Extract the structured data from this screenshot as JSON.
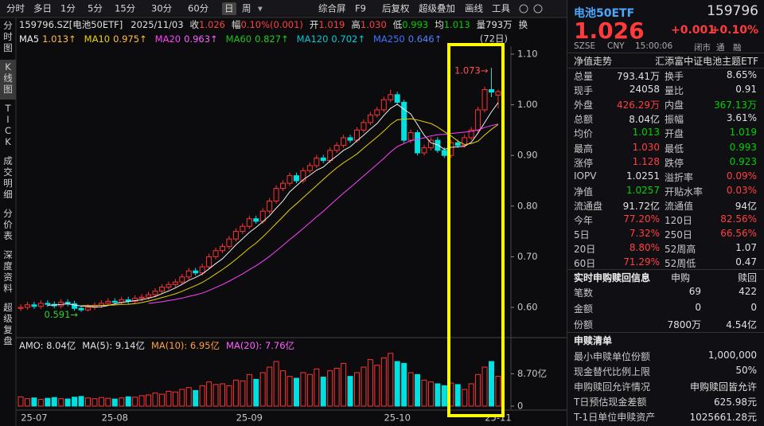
{
  "toolbar": {
    "periods": [
      "分时",
      "多日",
      "1分",
      "5分",
      "15分",
      "30分",
      "60分",
      "日",
      "周"
    ],
    "selected": "日",
    "tools": [
      "综合屏",
      "F9",
      "后复权",
      "超级叠加",
      "画线",
      "工具"
    ]
  },
  "side_tabs": [
    "分时图",
    "K线图",
    "TICK",
    "成交明细",
    "分价表",
    "深度资料",
    "超级复盘"
  ],
  "side_selected": "K线图",
  "quote_line": {
    "code": "159796.SZ[电池50ETF]",
    "date": "2025/11/03",
    "items": [
      {
        "label": "收",
        "value": "1.026",
        "color": "#ff4040"
      },
      {
        "label": "幅",
        "value": "0.10%(0.001)",
        "color": "#ff4040"
      },
      {
        "label": "开",
        "value": "1.019",
        "color": "#ff4040"
      },
      {
        "label": "高",
        "value": "1.030",
        "color": "#ff4040"
      },
      {
        "label": "低",
        "value": "0.993",
        "color": "#00d000"
      },
      {
        "label": "均",
        "value": "1.013",
        "color": "#00d000"
      },
      {
        "label": "量",
        "value": "793万",
        "color": "#e0e0e0"
      },
      {
        "label": "换",
        "value": "",
        "color": "#e0e0e0"
      }
    ]
  },
  "ma_legend": [
    {
      "label": "MA5",
      "value": "1.013↑",
      "color": "#f0f0f0",
      "vcolor": "#ffc040"
    },
    {
      "label": "MA10",
      "value": "0.975↑",
      "color": "#e8d000",
      "vcolor": "#ffc040"
    },
    {
      "label": "MA20",
      "value": "0.963↑",
      "color": "#ff40ff",
      "vcolor": "#ff60ff"
    },
    {
      "label": "MA60",
      "value": "0.827↑",
      "color": "#20c020",
      "vcolor": "#20d020"
    },
    {
      "label": "MA120",
      "value": "0.702↑",
      "color": "#00c8d0",
      "vcolor": "#00d0e0"
    },
    {
      "label": "MA250",
      "value": "0.646↑",
      "color": "#4070ff",
      "vcolor": "#5080ff"
    }
  ],
  "kline": {
    "period_label": "(72日)",
    "ylim": [
      0.6,
      1.1
    ],
    "yticks": [
      {
        "value": 1.1,
        "label": "1.10"
      },
      {
        "value": 1.0,
        "label": "1.00"
      },
      {
        "value": 0.9,
        "label": "0.90"
      },
      {
        "value": 0.8,
        "label": "0.80"
      },
      {
        "value": 0.7,
        "label": "0.70"
      },
      {
        "value": 0.6,
        "label": "0.60"
      }
    ],
    "high_note": "1.073→",
    "low_note": "0.591→",
    "up_color": "#ff3232",
    "down_color": "#00e0e0",
    "candles": [
      [
        0.598,
        0.606,
        0.593,
        0.6
      ],
      [
        0.6,
        0.611,
        0.595,
        0.605
      ],
      [
        0.605,
        0.611,
        0.597,
        0.602
      ],
      [
        0.602,
        0.614,
        0.597,
        0.608
      ],
      [
        0.608,
        0.614,
        0.601,
        0.606
      ],
      [
        0.606,
        0.612,
        0.598,
        0.603
      ],
      [
        0.603,
        0.616,
        0.598,
        0.61
      ],
      [
        0.61,
        0.616,
        0.602,
        0.607
      ],
      [
        0.607,
        0.613,
        0.593,
        0.598
      ],
      [
        0.598,
        0.604,
        0.591,
        0.595
      ],
      [
        0.595,
        0.606,
        0.592,
        0.6
      ],
      [
        0.6,
        0.61,
        0.595,
        0.604
      ],
      [
        0.604,
        0.614,
        0.599,
        0.608
      ],
      [
        0.608,
        0.618,
        0.603,
        0.612
      ],
      [
        0.612,
        0.618,
        0.605,
        0.61
      ],
      [
        0.61,
        0.621,
        0.605,
        0.615
      ],
      [
        0.615,
        0.621,
        0.607,
        0.612
      ],
      [
        0.612,
        0.624,
        0.607,
        0.618
      ],
      [
        0.618,
        0.626,
        0.613,
        0.62
      ],
      [
        0.62,
        0.631,
        0.615,
        0.625
      ],
      [
        0.625,
        0.638,
        0.62,
        0.632
      ],
      [
        0.632,
        0.646,
        0.627,
        0.64
      ],
      [
        0.64,
        0.651,
        0.635,
        0.645
      ],
      [
        0.645,
        0.656,
        0.64,
        0.65
      ],
      [
        0.65,
        0.666,
        0.645,
        0.66
      ],
      [
        0.66,
        0.678,
        0.655,
        0.672
      ],
      [
        0.672,
        0.678,
        0.663,
        0.668
      ],
      [
        0.668,
        0.686,
        0.663,
        0.68
      ],
      [
        0.68,
        0.706,
        0.675,
        0.7
      ],
      [
        0.7,
        0.718,
        0.695,
        0.712
      ],
      [
        0.712,
        0.726,
        0.707,
        0.72
      ],
      [
        0.72,
        0.741,
        0.715,
        0.735
      ],
      [
        0.735,
        0.756,
        0.73,
        0.75
      ],
      [
        0.75,
        0.766,
        0.745,
        0.76
      ],
      [
        0.76,
        0.781,
        0.755,
        0.775
      ],
      [
        0.775,
        0.781,
        0.765,
        0.77
      ],
      [
        0.77,
        0.796,
        0.765,
        0.79
      ],
      [
        0.79,
        0.816,
        0.785,
        0.81
      ],
      [
        0.81,
        0.841,
        0.805,
        0.835
      ],
      [
        0.835,
        0.851,
        0.83,
        0.845
      ],
      [
        0.845,
        0.866,
        0.84,
        0.86
      ],
      [
        0.86,
        0.866,
        0.845,
        0.85
      ],
      [
        0.85,
        0.876,
        0.845,
        0.87
      ],
      [
        0.87,
        0.886,
        0.865,
        0.88
      ],
      [
        0.88,
        0.901,
        0.875,
        0.895
      ],
      [
        0.895,
        0.901,
        0.885,
        0.89
      ],
      [
        0.89,
        0.916,
        0.885,
        0.91
      ],
      [
        0.91,
        0.926,
        0.905,
        0.92
      ],
      [
        0.92,
        0.941,
        0.915,
        0.935
      ],
      [
        0.935,
        0.941,
        0.925,
        0.93
      ],
      [
        0.93,
        0.956,
        0.925,
        0.95
      ],
      [
        0.95,
        0.971,
        0.945,
        0.965
      ],
      [
        0.965,
        0.986,
        0.96,
        0.98
      ],
      [
        0.98,
        0.996,
        0.975,
        0.99
      ],
      [
        0.99,
        1.016,
        0.985,
        1.01
      ],
      [
        1.01,
        1.03,
        1.005,
        1.02
      ],
      [
        1.02,
        1.026,
        1.0,
        1.005
      ],
      [
        1.005,
        1.01,
        0.925,
        0.93
      ],
      [
        0.93,
        0.951,
        0.925,
        0.945
      ],
      [
        0.945,
        0.95,
        0.9,
        0.905
      ],
      [
        0.905,
        0.921,
        0.9,
        0.915
      ],
      [
        0.915,
        0.936,
        0.91,
        0.93
      ],
      [
        0.93,
        0.936,
        0.905,
        0.91
      ],
      [
        0.91,
        0.916,
        0.895,
        0.9
      ],
      [
        0.9,
        0.931,
        0.895,
        0.925
      ],
      [
        0.925,
        0.931,
        0.915,
        0.92
      ],
      [
        0.92,
        0.941,
        0.915,
        0.935
      ],
      [
        0.935,
        0.956,
        0.93,
        0.95
      ],
      [
        0.95,
        0.996,
        0.945,
        0.99
      ],
      [
        0.99,
        1.036,
        0.985,
        1.03
      ],
      [
        1.03,
        1.073,
        1.015,
        1.025
      ],
      [
        1.019,
        1.03,
        0.993,
        1.026
      ]
    ],
    "dates": [
      null,
      null,
      "25-07",
      null,
      null,
      null,
      null,
      null,
      null,
      null,
      null,
      null,
      null,
      null,
      "25-08",
      null,
      null,
      null,
      null,
      null,
      null,
      null,
      null,
      null,
      null,
      null,
      null,
      null,
      null,
      null,
      null,
      null,
      null,
      null,
      "25-09",
      null,
      null,
      null,
      null,
      null,
      null,
      null,
      null,
      null,
      null,
      null,
      null,
      null,
      null,
      null,
      null,
      null,
      null,
      null,
      null,
      null,
      "25-10",
      null,
      null,
      null,
      null,
      null,
      null,
      null,
      null,
      null,
      null,
      null,
      null,
      null,
      null,
      "25-11"
    ],
    "volume_legend": [
      {
        "text": "AMO: 8.04亿",
        "color": "#e0e0e0"
      },
      {
        "text": "MA(5): 9.14亿",
        "color": "#e0e0e0"
      },
      {
        "text": "MA(10): 6.95亿",
        "color": "#ffa040"
      },
      {
        "text": "MA(20): 7.76亿",
        "color": "#ff60ff"
      }
    ],
    "vol_ylim": [
      0,
      15
    ],
    "vol_ticks": [
      {
        "value": 8.7,
        "label": "8.70亿"
      },
      0
    ],
    "volumes": [
      2.5,
      2.0,
      2.2,
      1.8,
      2.1,
      2.3,
      2.0,
      1.9,
      2.4,
      2.6,
      2.2,
      2.0,
      2.3,
      2.1,
      1.9,
      2.2,
      2.5,
      2.4,
      2.8,
      3.0,
      3.5,
      3.2,
      4.0,
      3.8,
      4.5,
      5.0,
      4.2,
      5.5,
      6.5,
      5.8,
      6.0,
      5.5,
      7.0,
      6.8,
      8.5,
      7.2,
      9.0,
      10.5,
      12.0,
      9.5,
      8.0,
      7.5,
      9.0,
      8.5,
      10.0,
      7.8,
      9.5,
      10.2,
      11.5,
      8.0,
      9.0,
      10.5,
      12.5,
      11.0,
      13.0,
      14.2,
      12.0,
      11.5,
      9.0,
      8.5,
      7.0,
      6.5,
      6.0,
      5.5,
      6.2,
      5.8,
      4.5,
      6.0,
      8.5,
      10.5,
      12.0,
      8.04
    ]
  },
  "panel": {
    "name": "电池50ETF",
    "code": "159796",
    "price": "1.026",
    "change": "+0.001",
    "pct": "+0.10%",
    "status": [
      "SZSE",
      "CNY",
      "15:00:06",
      "闭市",
      "通",
      "融"
    ],
    "nav_link": "净值走势",
    "fund_name": "汇添富中证电池主题ETF",
    "rows": [
      {
        "l1": "总量",
        "v1": "793.41万",
        "c1": "#e0e0e0",
        "l2": "换手",
        "v2": "8.65%",
        "c2": "#e0e0e0"
      },
      {
        "l1": "现手",
        "v1": "24058",
        "c1": "#e0e0e0",
        "l2": "量比",
        "v2": "0.91",
        "c2": "#e0e0e0"
      },
      {
        "l1": "外盘",
        "v1": "426.29万",
        "c1": "#ff4040",
        "l2": "内盘",
        "v2": "367.13万",
        "c2": "#00d000"
      },
      {
        "l1": "总额",
        "v1": "8.04亿",
        "c1": "#e0e0e0",
        "l2": "振幅",
        "v2": "3.61%",
        "c2": "#e0e0e0"
      },
      {
        "l1": "均价",
        "v1": "1.013",
        "c1": "#00d000",
        "l2": "开盘",
        "v2": "1.019",
        "c2": "#00d000"
      },
      {
        "l1": "最高",
        "v1": "1.030",
        "c1": "#ff4040",
        "l2": "最低",
        "v2": "0.993",
        "c2": "#00d000"
      },
      {
        "l1": "涨停",
        "v1": "1.128",
        "c1": "#ff4040",
        "l2": "跌停",
        "v2": "0.923",
        "c2": "#00d000"
      },
      {
        "l1": "IOPV",
        "v1": "1.0251",
        "c1": "#e0e0e0",
        "l2": "溢折率",
        "v2": "0.09%",
        "c2": "#ff4040"
      },
      {
        "l1": "净值",
        "v1": "1.0257",
        "c1": "#00d000",
        "l2": "开贴水率",
        "v2": "0.03%",
        "c2": "#ff4040"
      },
      {
        "l1": "流通盘",
        "v1": "91.72亿",
        "c1": "#e0e0e0",
        "l2": "流通值",
        "v2": "94亿",
        "c2": "#e0e0e0"
      },
      {
        "l1": "今年",
        "v1": "77.20%",
        "c1": "#ff4040",
        "l2": "120日",
        "v2": "82.56%",
        "c2": "#ff4040"
      },
      {
        "l1": "5日",
        "v1": "7.32%",
        "c1": "#ff4040",
        "l2": "250日",
        "v2": "66.56%",
        "c2": "#ff4040"
      },
      {
        "l1": "20日",
        "v1": "8.80%",
        "c1": "#ff4040",
        "l2": "52周高",
        "v2": "1.07",
        "c2": "#e0e0e0"
      },
      {
        "l1": "60日",
        "v1": "71.29%",
        "c1": "#ff4040",
        "l2": "52周低",
        "v2": "0.47",
        "c2": "#e0e0e0"
      }
    ],
    "creation": {
      "title": "实时申购赎回信息",
      "cols": [
        "申购",
        "赎回"
      ],
      "rows": [
        [
          "笔数",
          "69",
          "422"
        ],
        [
          "金额",
          "0",
          "0"
        ],
        [
          "份额",
          "7800万",
          "4.54亿"
        ]
      ]
    },
    "list": {
      "title": "申赎清单",
      "rows": [
        [
          "最小申赎单位份额",
          "1,000,000"
        ],
        [
          "现金替代比例上限",
          "50%"
        ],
        [
          "申购赎回允许情况",
          "申购赎回皆允许"
        ],
        [
          "T日预估现金差额",
          "625.98元"
        ],
        [
          "T-1日单位申赎资产",
          "1025661.28元"
        ]
      ]
    }
  }
}
